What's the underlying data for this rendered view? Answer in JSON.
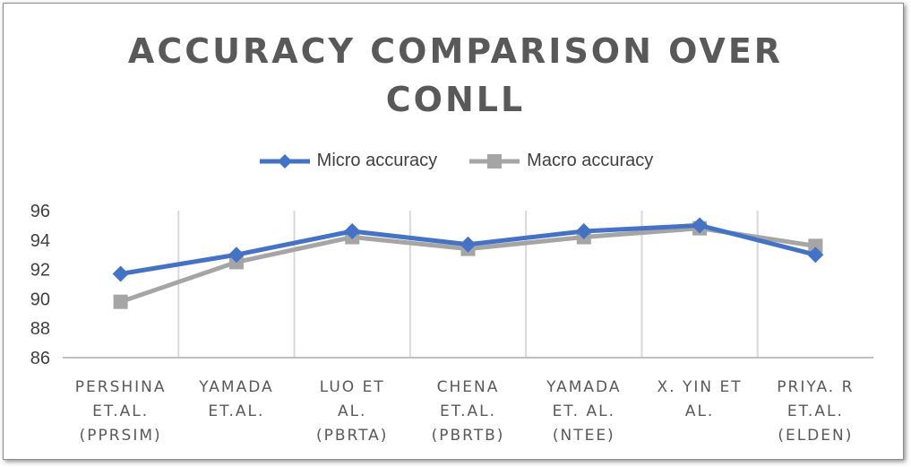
{
  "chart_data": {
    "type": "line",
    "title_lines": [
      "ACCURACY COMPARISON OVER",
      "CONLL"
    ],
    "categories": [
      [
        "PERSHINA",
        "ET.AL.",
        "(PPRSIM)"
      ],
      [
        "YAMADA",
        "ET.AL."
      ],
      [
        "LUO ET",
        "AL.",
        "(PBRTA)"
      ],
      [
        "CHENA",
        "ET.AL.",
        "(PBRTB)"
      ],
      [
        "YAMADA",
        "ET. AL.",
        "(NTEE)"
      ],
      [
        "X. YIN ET",
        "AL."
      ],
      [
        "PRIYA. R",
        "ET.AL.",
        "(ELDEN)"
      ]
    ],
    "series": [
      {
        "name": "Micro accuracy",
        "values": [
          91.7,
          93.0,
          94.6,
          93.7,
          94.6,
          95.0,
          93.0
        ],
        "color": "#4472C4",
        "marker": "diamond"
      },
      {
        "name": "Macro accuracy",
        "values": [
          89.8,
          92.5,
          94.2,
          93.4,
          94.2,
          94.8,
          93.6
        ],
        "color": "#A5A5A5",
        "marker": "square"
      }
    ],
    "ylim": [
      86,
      96
    ],
    "yticks": [
      86,
      88,
      90,
      92,
      94,
      96
    ],
    "grid": "vertical category separators",
    "legend_position": "top"
  }
}
